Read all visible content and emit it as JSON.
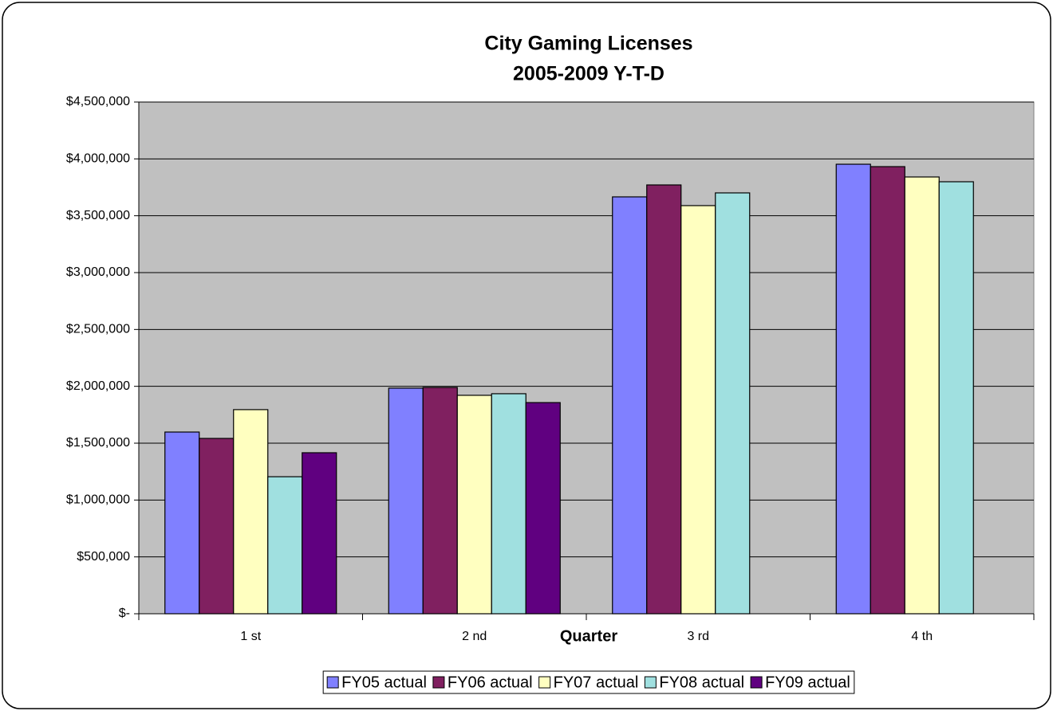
{
  "chart_data": {
    "type": "bar",
    "title": "City Gaming Licenses",
    "subtitle": "2005-2009 Y-T-D",
    "x_label": "Quarter",
    "categories": [
      "1 st",
      "2 nd",
      "3 rd",
      "4 th"
    ],
    "series": [
      {
        "name": "FY05 actual",
        "color": "#8080ff",
        "values": [
          1598000,
          1984000,
          3666000,
          3953000
        ]
      },
      {
        "name": "FY06 actual",
        "color": "#802060",
        "values": [
          1542000,
          1990000,
          3771000,
          3932000
        ]
      },
      {
        "name": "FY07 actual",
        "color": "#ffffc0",
        "values": [
          1795000,
          1921000,
          3589000,
          3841000
        ]
      },
      {
        "name": "FY08 actual",
        "color": "#a0e0e0",
        "values": [
          1205000,
          1935000,
          3701000,
          3799000
        ]
      },
      {
        "name": "FY09 actual",
        "color": "#600080",
        "values": [
          1416000,
          1857000,
          null,
          null
        ]
      }
    ],
    "ylim": [
      0,
      4500000
    ],
    "yticks": [
      {
        "value": 0,
        "label": "$-"
      },
      {
        "value": 500000,
        "label": "$500,000"
      },
      {
        "value": 1000000,
        "label": "$1,000,000"
      },
      {
        "value": 1500000,
        "label": "$1,500,000"
      },
      {
        "value": 2000000,
        "label": "$2,000,000"
      },
      {
        "value": 2500000,
        "label": "$2,500,000"
      },
      {
        "value": 3000000,
        "label": "$3,000,000"
      },
      {
        "value": 3500000,
        "label": "$3,500,000"
      },
      {
        "value": 4000000,
        "label": "$4,000,000"
      },
      {
        "value": 4500000,
        "label": "$4,500,000"
      }
    ],
    "grid": true,
    "plot_background": "#c0c0c0",
    "legend": "bottom"
  }
}
